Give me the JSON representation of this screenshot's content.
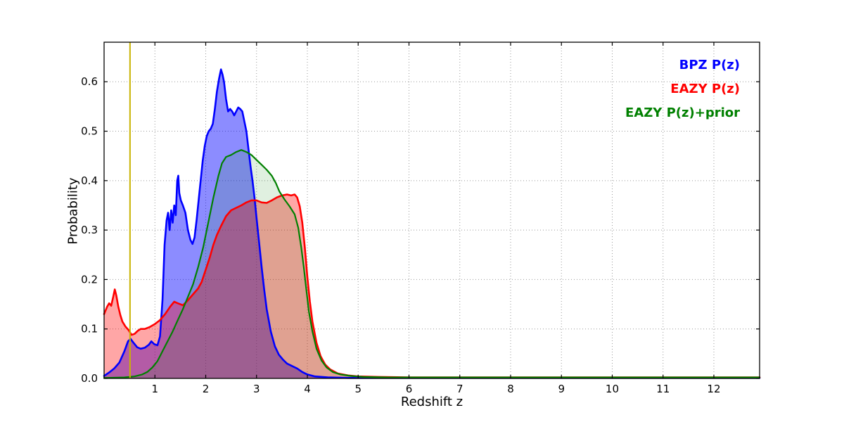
{
  "figure": {
    "xlabel": "Redshift z",
    "ylabel": "Probability"
  },
  "chart_data": {
    "type": "area",
    "title": "",
    "xlabel": "Redshift z",
    "ylabel": "Probability",
    "xlim": [
      0,
      12.9
    ],
    "ylim": [
      0,
      0.68
    ],
    "xticks": [
      1,
      2,
      3,
      4,
      5,
      6,
      7,
      8,
      9,
      10,
      11,
      12
    ],
    "yticks": [
      0.0,
      0.1,
      0.2,
      0.3,
      0.4,
      0.5,
      0.6
    ],
    "grid": true,
    "legend_position": "top-right",
    "vline": {
      "x": 0.51,
      "color": "#c9b300",
      "width": 2
    },
    "series": [
      {
        "label": "BPZ P(z)",
        "color": "#0000ff",
        "fill_opacity": 0.45,
        "line_width": 2.6,
        "points": [
          [
            0,
            0.005
          ],
          [
            0.1,
            0.012
          ],
          [
            0.2,
            0.02
          ],
          [
            0.3,
            0.032
          ],
          [
            0.4,
            0.055
          ],
          [
            0.47,
            0.075
          ],
          [
            0.52,
            0.08
          ],
          [
            0.58,
            0.072
          ],
          [
            0.65,
            0.063
          ],
          [
            0.72,
            0.06
          ],
          [
            0.8,
            0.062
          ],
          [
            0.88,
            0.068
          ],
          [
            0.93,
            0.075
          ],
          [
            0.99,
            0.069
          ],
          [
            1.05,
            0.067
          ],
          [
            1.1,
            0.085
          ],
          [
            1.15,
            0.16
          ],
          [
            1.19,
            0.27
          ],
          [
            1.23,
            0.32
          ],
          [
            1.26,
            0.335
          ],
          [
            1.29,
            0.3
          ],
          [
            1.32,
            0.34
          ],
          [
            1.35,
            0.315
          ],
          [
            1.38,
            0.35
          ],
          [
            1.41,
            0.33
          ],
          [
            1.44,
            0.4
          ],
          [
            1.46,
            0.41
          ],
          [
            1.48,
            0.375
          ],
          [
            1.51,
            0.36
          ],
          [
            1.55,
            0.35
          ],
          [
            1.6,
            0.335
          ],
          [
            1.65,
            0.3
          ],
          [
            1.7,
            0.28
          ],
          [
            1.74,
            0.272
          ],
          [
            1.78,
            0.285
          ],
          [
            1.82,
            0.32
          ],
          [
            1.86,
            0.36
          ],
          [
            1.9,
            0.4
          ],
          [
            1.94,
            0.44
          ],
          [
            1.98,
            0.47
          ],
          [
            2.02,
            0.49
          ],
          [
            2.06,
            0.5
          ],
          [
            2.1,
            0.505
          ],
          [
            2.14,
            0.515
          ],
          [
            2.18,
            0.545
          ],
          [
            2.22,
            0.58
          ],
          [
            2.26,
            0.605
          ],
          [
            2.3,
            0.625
          ],
          [
            2.33,
            0.615
          ],
          [
            2.36,
            0.6
          ],
          [
            2.4,
            0.565
          ],
          [
            2.44,
            0.54
          ],
          [
            2.48,
            0.545
          ],
          [
            2.52,
            0.54
          ],
          [
            2.56,
            0.532
          ],
          [
            2.6,
            0.54
          ],
          [
            2.64,
            0.548
          ],
          [
            2.68,
            0.545
          ],
          [
            2.72,
            0.54
          ],
          [
            2.76,
            0.52
          ],
          [
            2.8,
            0.5
          ],
          [
            2.84,
            0.465
          ],
          [
            2.88,
            0.43
          ],
          [
            2.92,
            0.4
          ],
          [
            2.96,
            0.365
          ],
          [
            3.0,
            0.325
          ],
          [
            3.05,
            0.275
          ],
          [
            3.1,
            0.225
          ],
          [
            3.15,
            0.18
          ],
          [
            3.2,
            0.14
          ],
          [
            3.28,
            0.095
          ],
          [
            3.36,
            0.065
          ],
          [
            3.44,
            0.048
          ],
          [
            3.52,
            0.038
          ],
          [
            3.6,
            0.03
          ],
          [
            3.7,
            0.025
          ],
          [
            3.8,
            0.02
          ],
          [
            3.9,
            0.013
          ],
          [
            4.0,
            0.008
          ],
          [
            4.15,
            0.004
          ],
          [
            4.4,
            0.002
          ],
          [
            4.8,
            0.001
          ],
          [
            6,
            0.001
          ],
          [
            9,
            0.001
          ],
          [
            12.9,
            0.001
          ]
        ]
      },
      {
        "label": "EAZY P(z)",
        "color": "#ff0000",
        "fill_opacity": 0.35,
        "line_width": 2.6,
        "points": [
          [
            0,
            0.13
          ],
          [
            0.06,
            0.145
          ],
          [
            0.1,
            0.152
          ],
          [
            0.14,
            0.147
          ],
          [
            0.18,
            0.165
          ],
          [
            0.21,
            0.18
          ],
          [
            0.24,
            0.168
          ],
          [
            0.28,
            0.145
          ],
          [
            0.32,
            0.128
          ],
          [
            0.36,
            0.115
          ],
          [
            0.42,
            0.105
          ],
          [
            0.48,
            0.098
          ],
          [
            0.54,
            0.088
          ],
          [
            0.6,
            0.09
          ],
          [
            0.66,
            0.096
          ],
          [
            0.72,
            0.1
          ],
          [
            0.8,
            0.1
          ],
          [
            0.9,
            0.104
          ],
          [
            1.0,
            0.11
          ],
          [
            1.1,
            0.118
          ],
          [
            1.2,
            0.13
          ],
          [
            1.3,
            0.145
          ],
          [
            1.38,
            0.155
          ],
          [
            1.45,
            0.152
          ],
          [
            1.55,
            0.148
          ],
          [
            1.65,
            0.158
          ],
          [
            1.75,
            0.17
          ],
          [
            1.85,
            0.182
          ],
          [
            1.92,
            0.195
          ],
          [
            2.0,
            0.22
          ],
          [
            2.08,
            0.245
          ],
          [
            2.15,
            0.27
          ],
          [
            2.22,
            0.29
          ],
          [
            2.3,
            0.308
          ],
          [
            2.4,
            0.328
          ],
          [
            2.5,
            0.34
          ],
          [
            2.6,
            0.345
          ],
          [
            2.7,
            0.35
          ],
          [
            2.8,
            0.356
          ],
          [
            2.9,
            0.36
          ],
          [
            3.0,
            0.36
          ],
          [
            3.1,
            0.356
          ],
          [
            3.2,
            0.355
          ],
          [
            3.3,
            0.36
          ],
          [
            3.4,
            0.366
          ],
          [
            3.5,
            0.37
          ],
          [
            3.6,
            0.372
          ],
          [
            3.68,
            0.37
          ],
          [
            3.75,
            0.372
          ],
          [
            3.8,
            0.366
          ],
          [
            3.85,
            0.348
          ],
          [
            3.9,
            0.315
          ],
          [
            3.95,
            0.265
          ],
          [
            4.0,
            0.205
          ],
          [
            4.05,
            0.155
          ],
          [
            4.1,
            0.115
          ],
          [
            4.18,
            0.072
          ],
          [
            4.26,
            0.045
          ],
          [
            4.35,
            0.028
          ],
          [
            4.45,
            0.018
          ],
          [
            4.6,
            0.01
          ],
          [
            4.8,
            0.006
          ],
          [
            5.0,
            0.004
          ],
          [
            5.4,
            0.003
          ],
          [
            6,
            0.002
          ],
          [
            7,
            0.002
          ],
          [
            9,
            0.002
          ],
          [
            11,
            0.002
          ],
          [
            12.9,
            0.002
          ]
        ]
      },
      {
        "label": "EAZY P(z)+prior",
        "color": "#008000",
        "fill_opacity": 0.12,
        "line_width": 2.2,
        "points": [
          [
            0,
            0.001
          ],
          [
            0.4,
            0.002
          ],
          [
            0.6,
            0.004
          ],
          [
            0.75,
            0.008
          ],
          [
            0.85,
            0.013
          ],
          [
            0.95,
            0.022
          ],
          [
            1.05,
            0.035
          ],
          [
            1.15,
            0.055
          ],
          [
            1.25,
            0.075
          ],
          [
            1.35,
            0.095
          ],
          [
            1.45,
            0.118
          ],
          [
            1.55,
            0.14
          ],
          [
            1.65,
            0.165
          ],
          [
            1.75,
            0.19
          ],
          [
            1.85,
            0.225
          ],
          [
            1.95,
            0.265
          ],
          [
            2.05,
            0.315
          ],
          [
            2.15,
            0.365
          ],
          [
            2.25,
            0.41
          ],
          [
            2.32,
            0.435
          ],
          [
            2.4,
            0.448
          ],
          [
            2.5,
            0.452
          ],
          [
            2.6,
            0.458
          ],
          [
            2.7,
            0.462
          ],
          [
            2.8,
            0.458
          ],
          [
            2.9,
            0.452
          ],
          [
            3.0,
            0.442
          ],
          [
            3.1,
            0.432
          ],
          [
            3.2,
            0.422
          ],
          [
            3.3,
            0.41
          ],
          [
            3.38,
            0.395
          ],
          [
            3.45,
            0.378
          ],
          [
            3.55,
            0.362
          ],
          [
            3.65,
            0.348
          ],
          [
            3.75,
            0.332
          ],
          [
            3.82,
            0.305
          ],
          [
            3.88,
            0.265
          ],
          [
            3.93,
            0.225
          ],
          [
            3.98,
            0.18
          ],
          [
            4.03,
            0.135
          ],
          [
            4.1,
            0.095
          ],
          [
            4.18,
            0.06
          ],
          [
            4.28,
            0.036
          ],
          [
            4.38,
            0.022
          ],
          [
            4.5,
            0.013
          ],
          [
            4.65,
            0.008
          ],
          [
            4.85,
            0.005
          ],
          [
            5.1,
            0.003
          ],
          [
            5.6,
            0.002
          ],
          [
            6.5,
            0.002
          ],
          [
            8,
            0.002
          ],
          [
            10,
            0.002
          ],
          [
            12.9,
            0.002
          ]
        ]
      }
    ]
  }
}
